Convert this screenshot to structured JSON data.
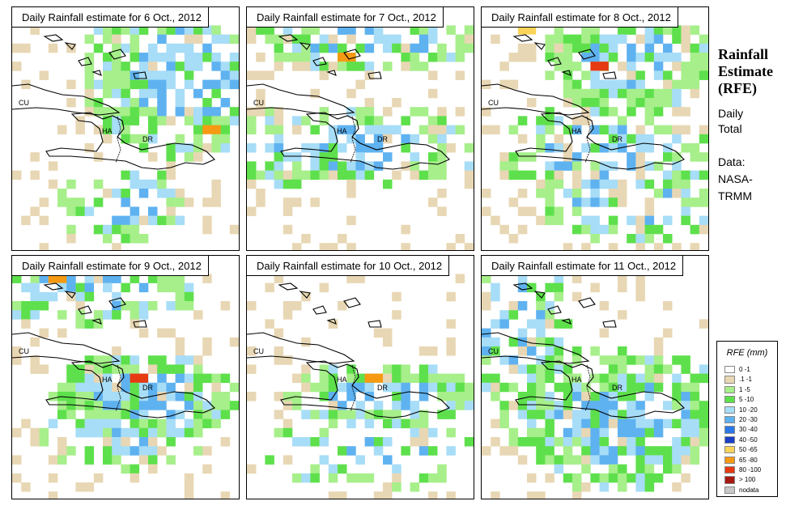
{
  "panels": [
    {
      "title": "Daily Rainfall estimate for  6 Oct., 2012",
      "labels": {
        "cu": "CU",
        "ha": "HA",
        "dr": "DR"
      }
    },
    {
      "title": "Daily Rainfall estimate for  7 Oct., 2012",
      "labels": {
        "cu": "CU",
        "ha": "HA",
        "dr": "DR"
      }
    },
    {
      "title": "Daily Rainfall estimate for  8 Oct., 2012",
      "labels": {
        "cu": "CU",
        "ha": "HA",
        "dr": "DR"
      }
    },
    {
      "title": "Daily Rainfall estimate for  9 Oct., 2012",
      "labels": {
        "cu": "CU",
        "ha": "HA",
        "dr": "DR"
      }
    },
    {
      "title": "Daily Rainfall estimate for  10 Oct., 2012",
      "labels": {
        "cu": "CU",
        "ha": "HA",
        "dr": "DR"
      }
    },
    {
      "title": "Daily Rainfall estimate for  11 Oct., 2012",
      "labels": {
        "cu": "CU",
        "ha": "HA",
        "dr": "DR"
      }
    }
  ],
  "side": {
    "title_line1": "Rainfall",
    "title_line2": "Estimate",
    "title_line3": "(RFE)",
    "sub_line1": "Daily",
    "sub_line2": "Total",
    "data_line1": "Data:",
    "data_line2": "NASA-",
    "data_line3": "TRMM"
  },
  "legend": {
    "title": "RFE (mm)",
    "items": [
      {
        "label": "0 -1",
        "color": "#ffffff"
      },
      {
        "label": ".1 -1",
        "color": "#e8d7b4"
      },
      {
        "label": "1 -5",
        "color": "#a6ef8a"
      },
      {
        "label": "5 -10",
        "color": "#5ee04c"
      },
      {
        "label": "10 -20",
        "color": "#a7ddf7"
      },
      {
        "label": "20 -30",
        "color": "#5fb2f0"
      },
      {
        "label": "30 -40",
        "color": "#2c78e6"
      },
      {
        "label": "40 -50",
        "color": "#1a40c8"
      },
      {
        "label": "50 -65",
        "color": "#fad45a"
      },
      {
        "label": "65 -80",
        "color": "#f59a12"
      },
      {
        "label": "80 -100",
        "color": "#e63a12"
      },
      {
        "label": "> 100",
        "color": "#a61a12"
      },
      {
        "label": "nodata",
        "color": "#c8c8c8"
      }
    ]
  }
}
